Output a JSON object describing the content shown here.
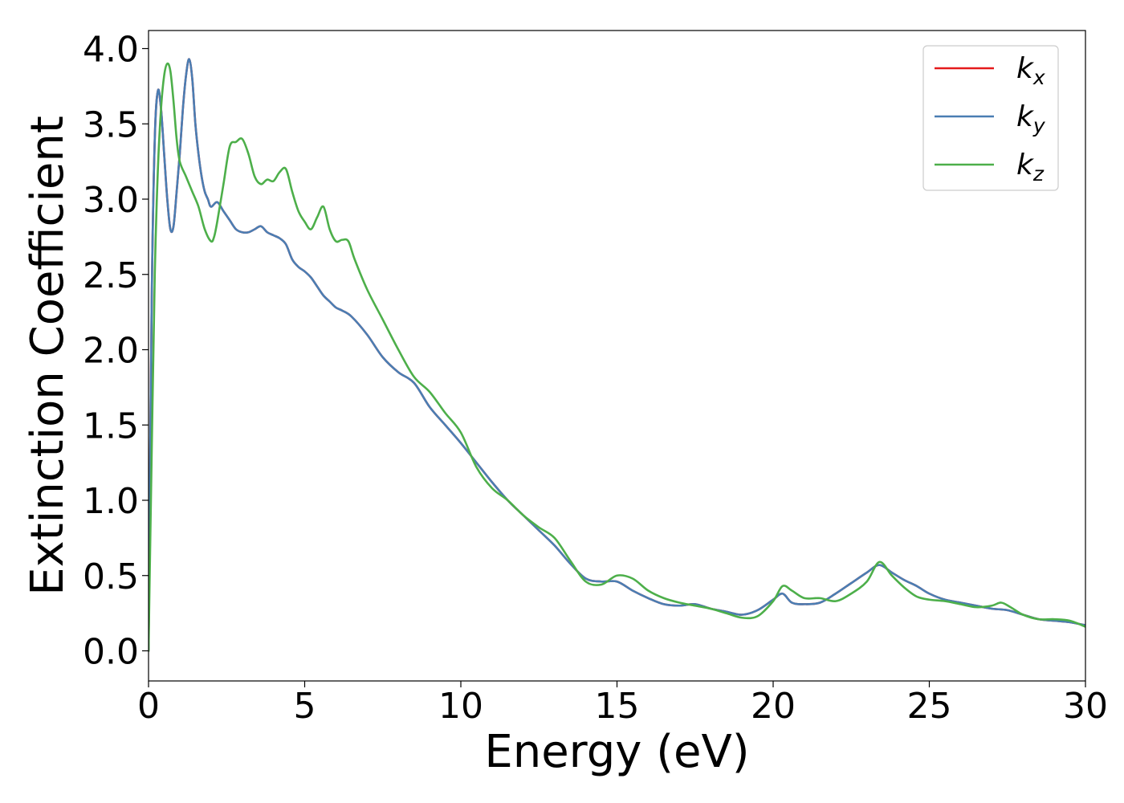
{
  "chart_data": {
    "type": "line",
    "title": "",
    "xlabel": "Energy (eV)",
    "ylabel": "Extinction Coefficient",
    "xlim": [
      0,
      30
    ],
    "ylim": [
      -0.2,
      4.12
    ],
    "xticks": [
      0,
      5,
      10,
      15,
      20,
      25,
      30
    ],
    "xtick_labels": [
      "0",
      "5",
      "10",
      "15",
      "20",
      "25",
      "30"
    ],
    "yticks": [
      0.0,
      0.5,
      1.0,
      1.5,
      2.0,
      2.5,
      3.0,
      3.5,
      4.0
    ],
    "ytick_labels": [
      "0.0",
      "0.5",
      "1.0",
      "1.5",
      "2.0",
      "2.5",
      "3.0",
      "3.5",
      "4.0"
    ],
    "grid": false,
    "legend_position": "top-right",
    "series": [
      {
        "name": "k_x",
        "base": "k",
        "sub": "x",
        "color": "#e41a1c",
        "x": [
          0,
          0.1,
          0.2,
          0.3,
          0.4,
          0.5,
          0.6,
          0.7,
          0.8,
          0.9,
          1.0,
          1.1,
          1.2,
          1.3,
          1.4,
          1.5,
          1.6,
          1.7,
          1.8,
          1.9,
          2.0,
          2.2,
          2.4,
          2.6,
          2.8,
          3.0,
          3.2,
          3.4,
          3.6,
          3.8,
          4.0,
          4.2,
          4.4,
          4.6,
          4.8,
          5.0,
          5.2,
          5.4,
          5.6,
          5.8,
          6.0,
          6.2,
          6.5,
          7.0,
          7.5,
          8.0,
          8.5,
          9.0,
          9.5,
          10.0,
          10.5,
          11.0,
          11.5,
          12.0,
          12.5,
          13.0,
          13.5,
          14.0,
          14.5,
          15.0,
          15.5,
          16.0,
          16.5,
          17.0,
          17.5,
          18.0,
          18.5,
          19.0,
          19.5,
          20.0,
          20.3,
          20.6,
          21.0,
          21.5,
          22.0,
          22.5,
          23.0,
          23.4,
          23.8,
          24.2,
          24.6,
          25.0,
          25.5,
          26.0,
          26.5,
          27.0,
          27.5,
          28.0,
          28.5,
          29.0,
          29.5,
          30.0
        ],
        "y": [
          0.0,
          2.3,
          3.4,
          3.72,
          3.6,
          3.3,
          3.0,
          2.8,
          2.82,
          3.05,
          3.3,
          3.6,
          3.82,
          3.93,
          3.8,
          3.5,
          3.3,
          3.15,
          3.05,
          3.0,
          2.95,
          2.98,
          2.92,
          2.86,
          2.8,
          2.78,
          2.78,
          2.8,
          2.82,
          2.78,
          2.76,
          2.74,
          2.7,
          2.6,
          2.55,
          2.52,
          2.48,
          2.42,
          2.36,
          2.32,
          2.28,
          2.26,
          2.22,
          2.1,
          1.95,
          1.85,
          1.78,
          1.62,
          1.5,
          1.38,
          1.25,
          1.12,
          1.0,
          0.9,
          0.8,
          0.7,
          0.58,
          0.48,
          0.46,
          0.46,
          0.4,
          0.35,
          0.31,
          0.3,
          0.31,
          0.28,
          0.26,
          0.24,
          0.27,
          0.34,
          0.38,
          0.32,
          0.31,
          0.32,
          0.38,
          0.45,
          0.52,
          0.57,
          0.52,
          0.47,
          0.43,
          0.38,
          0.34,
          0.32,
          0.3,
          0.28,
          0.27,
          0.24,
          0.21,
          0.2,
          0.19,
          0.17
        ]
      },
      {
        "name": "k_y",
        "base": "k",
        "sub": "y",
        "color": "#4a7eb3",
        "x": [
          0,
          0.1,
          0.2,
          0.3,
          0.4,
          0.5,
          0.6,
          0.7,
          0.8,
          0.9,
          1.0,
          1.1,
          1.2,
          1.3,
          1.4,
          1.5,
          1.6,
          1.7,
          1.8,
          1.9,
          2.0,
          2.2,
          2.4,
          2.6,
          2.8,
          3.0,
          3.2,
          3.4,
          3.6,
          3.8,
          4.0,
          4.2,
          4.4,
          4.6,
          4.8,
          5.0,
          5.2,
          5.4,
          5.6,
          5.8,
          6.0,
          6.2,
          6.5,
          7.0,
          7.5,
          8.0,
          8.5,
          9.0,
          9.5,
          10.0,
          10.5,
          11.0,
          11.5,
          12.0,
          12.5,
          13.0,
          13.5,
          14.0,
          14.5,
          15.0,
          15.5,
          16.0,
          16.5,
          17.0,
          17.5,
          18.0,
          18.5,
          19.0,
          19.5,
          20.0,
          20.3,
          20.6,
          21.0,
          21.5,
          22.0,
          22.5,
          23.0,
          23.4,
          23.8,
          24.2,
          24.6,
          25.0,
          25.5,
          26.0,
          26.5,
          27.0,
          27.5,
          28.0,
          28.5,
          29.0,
          29.5,
          30.0
        ],
        "y": [
          0.0,
          2.3,
          3.4,
          3.72,
          3.6,
          3.3,
          3.0,
          2.8,
          2.82,
          3.05,
          3.3,
          3.6,
          3.82,
          3.93,
          3.8,
          3.5,
          3.3,
          3.15,
          3.05,
          3.0,
          2.95,
          2.98,
          2.92,
          2.86,
          2.8,
          2.78,
          2.78,
          2.8,
          2.82,
          2.78,
          2.76,
          2.74,
          2.7,
          2.6,
          2.55,
          2.52,
          2.48,
          2.42,
          2.36,
          2.32,
          2.28,
          2.26,
          2.22,
          2.1,
          1.95,
          1.85,
          1.78,
          1.62,
          1.5,
          1.38,
          1.25,
          1.12,
          1.0,
          0.9,
          0.8,
          0.7,
          0.58,
          0.48,
          0.46,
          0.46,
          0.4,
          0.35,
          0.31,
          0.3,
          0.31,
          0.28,
          0.26,
          0.24,
          0.27,
          0.34,
          0.38,
          0.32,
          0.31,
          0.32,
          0.38,
          0.45,
          0.52,
          0.57,
          0.52,
          0.47,
          0.43,
          0.38,
          0.34,
          0.32,
          0.3,
          0.28,
          0.27,
          0.24,
          0.21,
          0.2,
          0.19,
          0.17
        ]
      },
      {
        "name": "k_z",
        "base": "k",
        "sub": "z",
        "color": "#4daf4a",
        "x": [
          0,
          0.1,
          0.2,
          0.3,
          0.4,
          0.5,
          0.6,
          0.7,
          0.8,
          0.9,
          1.0,
          1.2,
          1.4,
          1.6,
          1.8,
          2.0,
          2.1,
          2.2,
          2.4,
          2.6,
          2.8,
          3.0,
          3.2,
          3.4,
          3.6,
          3.8,
          4.0,
          4.2,
          4.4,
          4.6,
          4.8,
          5.0,
          5.2,
          5.4,
          5.6,
          5.8,
          6.0,
          6.2,
          6.4,
          6.6,
          7.0,
          7.5,
          8.0,
          8.5,
          9.0,
          9.5,
          10.0,
          10.5,
          11.0,
          11.5,
          12.0,
          12.5,
          13.0,
          13.5,
          14.0,
          14.5,
          15.0,
          15.5,
          16.0,
          16.5,
          17.0,
          17.5,
          18.0,
          18.5,
          19.0,
          19.5,
          20.0,
          20.3,
          20.6,
          21.0,
          21.5,
          22.0,
          22.5,
          23.0,
          23.4,
          23.8,
          24.2,
          24.6,
          25.0,
          25.5,
          26.0,
          26.5,
          27.0,
          27.3,
          27.6,
          28.0,
          28.5,
          29.0,
          29.5,
          30.0
        ],
        "y": [
          0.0,
          1.3,
          2.5,
          3.2,
          3.6,
          3.82,
          3.9,
          3.85,
          3.65,
          3.4,
          3.25,
          3.15,
          3.05,
          2.95,
          2.8,
          2.72,
          2.75,
          2.85,
          3.1,
          3.35,
          3.38,
          3.4,
          3.3,
          3.15,
          3.1,
          3.13,
          3.12,
          3.18,
          3.2,
          3.05,
          2.92,
          2.85,
          2.8,
          2.88,
          2.95,
          2.8,
          2.72,
          2.73,
          2.72,
          2.6,
          2.4,
          2.2,
          2.0,
          1.82,
          1.72,
          1.58,
          1.45,
          1.22,
          1.08,
          1.0,
          0.9,
          0.82,
          0.75,
          0.6,
          0.46,
          0.44,
          0.5,
          0.48,
          0.4,
          0.35,
          0.32,
          0.3,
          0.28,
          0.25,
          0.22,
          0.23,
          0.33,
          0.43,
          0.4,
          0.35,
          0.35,
          0.33,
          0.38,
          0.46,
          0.59,
          0.5,
          0.42,
          0.36,
          0.34,
          0.33,
          0.31,
          0.29,
          0.3,
          0.32,
          0.29,
          0.24,
          0.21,
          0.21,
          0.2,
          0.16
        ]
      }
    ]
  }
}
